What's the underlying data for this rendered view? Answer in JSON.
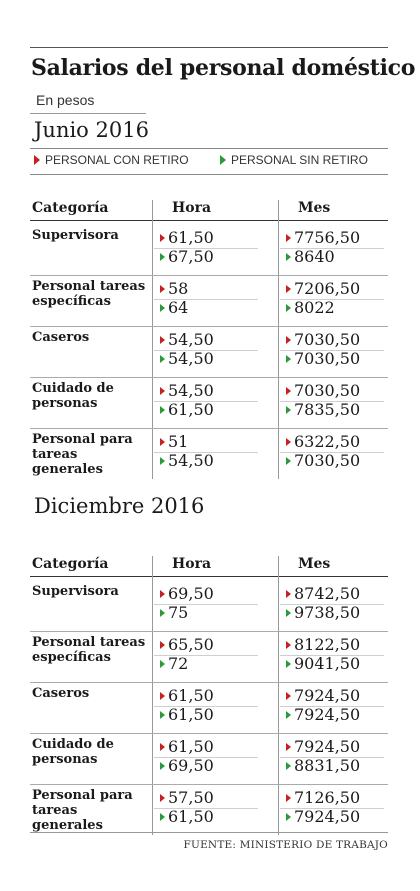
{
  "title": "Salarios del personal doméstico",
  "subtitle": "En pesos",
  "legend": {
    "con_retiro": "PERSONAL CON RETIRO",
    "sin_retiro": "PERSONAL SIN RETIRO",
    "colors": {
      "con_retiro": "#c72020",
      "sin_retiro": "#2a9a3a"
    }
  },
  "source": "FUENTE: MINISTERIO DE TRABAJO",
  "chart_data": [
    {
      "type": "table",
      "title": "Junio 2016",
      "columns": [
        "Categoría",
        "Hora",
        "Mes"
      ],
      "rows": [
        {
          "category": "Supervisora",
          "hora": [
            "61,50",
            "67,50"
          ],
          "mes": [
            "7756,50",
            "8640"
          ]
        },
        {
          "category": "Personal tareas específicas",
          "hora": [
            "58",
            "64"
          ],
          "mes": [
            "7206,50",
            "8022"
          ]
        },
        {
          "category": "Caseros",
          "hora": [
            "54,50",
            "54,50"
          ],
          "mes": [
            "7030,50",
            "7030,50"
          ]
        },
        {
          "category": "Cuidado de personas",
          "hora": [
            "54,50",
            "61,50"
          ],
          "mes": [
            "7030,50",
            "7835,50"
          ]
        },
        {
          "category": "Personal para tareas generales",
          "hora": [
            "51",
            "54,50"
          ],
          "mes": [
            "6322,50",
            "7030,50"
          ]
        }
      ]
    },
    {
      "type": "table",
      "title": "Diciembre 2016",
      "columns": [
        "Categoría",
        "Hora",
        "Mes"
      ],
      "rows": [
        {
          "category": "Supervisora",
          "hora": [
            "69,50",
            "75"
          ],
          "mes": [
            "8742,50",
            "9738,50"
          ]
        },
        {
          "category": "Personal tareas específicas",
          "hora": [
            "65,50",
            "72"
          ],
          "mes": [
            "8122,50",
            "9041,50"
          ]
        },
        {
          "category": "Caseros",
          "hora": [
            "61,50",
            "61,50"
          ],
          "mes": [
            "7924,50",
            "7924,50"
          ]
        },
        {
          "category": "Cuidado de personas",
          "hora": [
            "61,50",
            "69,50"
          ],
          "mes": [
            "7924,50",
            "8831,50"
          ]
        },
        {
          "category": "Personal para tareas generales",
          "hora": [
            "57,50",
            "61,50"
          ],
          "mes": [
            "7126,50",
            "7924,50"
          ]
        }
      ]
    }
  ]
}
